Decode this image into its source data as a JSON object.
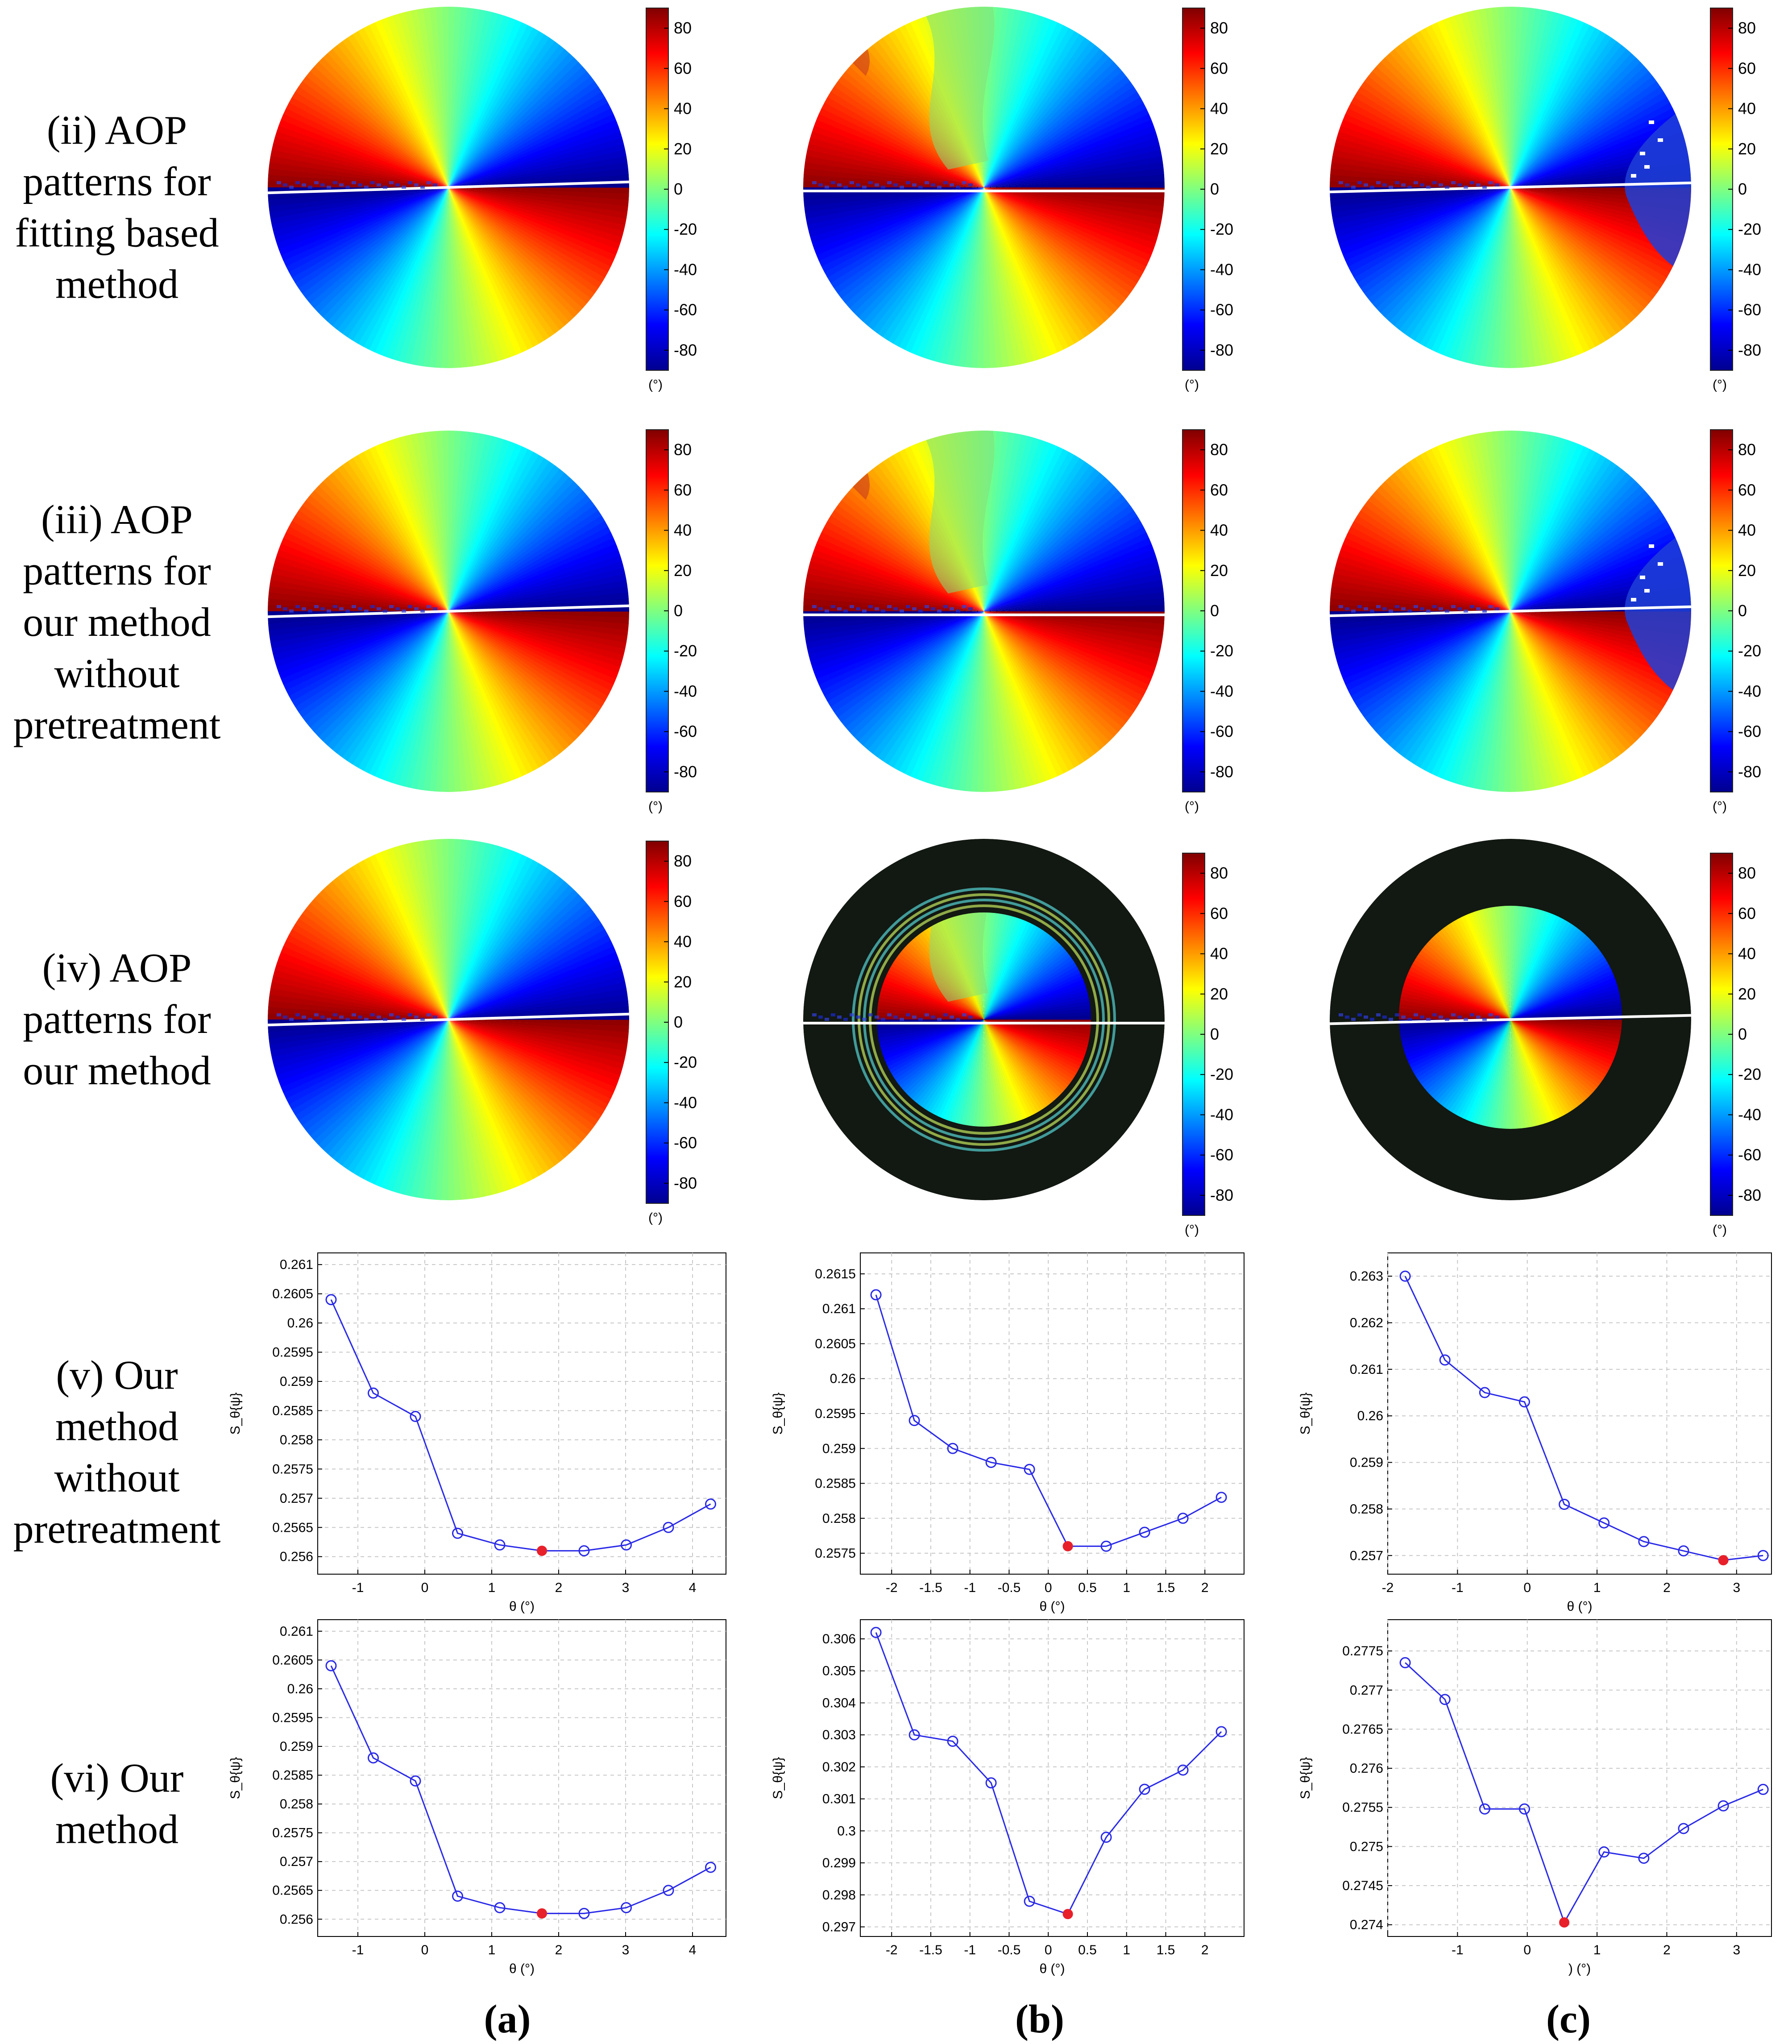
{
  "row_labels": [
    [
      "(ii) AOP",
      "patterns for",
      "fitting based",
      "method"
    ],
    [
      "(iii) AOP",
      "patterns for",
      "our method",
      "without",
      "pretreatment"
    ],
    [
      "(iv) AOP",
      "patterns for",
      "our method"
    ],
    [
      "(v) Our",
      "method",
      "without",
      "pretreatment"
    ],
    [
      "(vi) Our",
      "method"
    ]
  ],
  "column_labels": [
    "(a)",
    "(b)",
    "(c)"
  ],
  "colorbar": {
    "ticks": [
      "80",
      "60",
      "40",
      "20",
      "0",
      "-20",
      "-40",
      "-60",
      "-80"
    ],
    "unit": "(°)",
    "range": [
      -90,
      90
    ],
    "colormap": "jet"
  },
  "colors": {
    "line": "#2a2ae8",
    "marker": "#2a2ae8",
    "minimum_marker": "#e8202a",
    "grid": "#c8c8c8",
    "mask": "#121812"
  },
  "aop_maps": [
    [
      {
        "name": "aop-ii-a",
        "variant": "clean",
        "line_slope_deg": -0.6
      },
      {
        "name": "aop-ii-b",
        "variant": "noisy",
        "line_slope_deg": 0.0
      },
      {
        "name": "aop-ii-c",
        "variant": "dark-patch",
        "line_slope_deg": -0.3
      }
    ],
    [
      {
        "name": "aop-iii-a",
        "variant": "clean",
        "line_slope_deg": -0.6
      },
      {
        "name": "aop-iii-b",
        "variant": "noisy",
        "line_slope_deg": 0.0
      },
      {
        "name": "aop-iii-c",
        "variant": "dark-patch",
        "line_slope_deg": -0.3
      }
    ],
    [
      {
        "name": "aop-iv-a",
        "variant": "clean",
        "line_slope_deg": -0.6
      },
      {
        "name": "aop-iv-b",
        "variant": "ring-mask",
        "line_slope_deg": 0.0
      },
      {
        "name": "aop-iv-c",
        "variant": "disc-mask",
        "line_slope_deg": -0.2
      }
    ]
  ],
  "chart_data": [
    {
      "type": "line",
      "id": "v-a",
      "title": "",
      "xlabel": "θ (°)",
      "ylabel": "S_θ{ψ}",
      "x": [
        -1.4,
        -0.77,
        -0.14,
        0.49,
        1.12,
        1.75,
        2.38,
        3.01,
        3.64,
        4.27
      ],
      "y": [
        0.2604,
        0.2588,
        0.2584,
        0.2564,
        0.2562,
        0.2561,
        0.2561,
        0.2562,
        0.2565,
        0.2569
      ],
      "min_index": 5,
      "xlim": [
        -1.6,
        4.5
      ],
      "ylim": [
        0.2557,
        0.2612
      ],
      "xticks": [
        -1,
        0,
        1,
        2,
        3,
        4
      ],
      "xtick_labels": [
        "-1",
        "0",
        "1",
        "2",
        "3",
        "4"
      ],
      "yticks": [
        0.256,
        0.2565,
        0.257,
        0.2575,
        0.258,
        0.2585,
        0.259,
        0.2595,
        0.26,
        0.2605,
        0.261
      ],
      "ytick_labels": [
        "0.256",
        "0.2565",
        "0.257",
        "0.2575",
        "0.258",
        "0.2585",
        "0.259",
        "0.2595",
        "0.26",
        "0.2605",
        "0.261"
      ]
    },
    {
      "type": "line",
      "id": "v-b",
      "title": "",
      "xlabel": "θ (°)",
      "ylabel": "S_θ{ψ}",
      "x": [
        -2.2,
        -1.71,
        -1.22,
        -0.73,
        -0.24,
        0.25,
        0.74,
        1.23,
        1.72,
        2.21
      ],
      "y": [
        0.2612,
        0.2594,
        0.259,
        0.2588,
        0.2587,
        0.2576,
        0.2576,
        0.2578,
        0.258,
        0.2583
      ],
      "min_index": 5,
      "xlim": [
        -2.4,
        2.5
      ],
      "ylim": [
        0.2572,
        0.2618
      ],
      "xticks": [
        -2,
        -1.5,
        -1,
        -0.5,
        0,
        0.5,
        1,
        1.5,
        2
      ],
      "xtick_labels": [
        "-2",
        "-1.5",
        "-1",
        "-0.5",
        "0",
        "0.5",
        "1",
        "1.5",
        "2"
      ],
      "yticks": [
        0.2575,
        0.258,
        0.2585,
        0.259,
        0.2595,
        0.26,
        0.2605,
        0.261,
        0.2615
      ],
      "ytick_labels": [
        "0.2575",
        "0.258",
        "0.2585",
        "0.259",
        "0.2595",
        "0.26",
        "0.2605",
        "0.261",
        "0.2615"
      ]
    },
    {
      "type": "line",
      "id": "v-c",
      "title": "",
      "xlabel": "θ (°)",
      "ylabel": "S_θ{ψ}",
      "x": [
        -1.75,
        -1.18,
        -0.61,
        -0.04,
        0.53,
        1.1,
        1.67,
        2.24,
        2.81,
        3.38
      ],
      "y": [
        0.263,
        0.2612,
        0.2605,
        0.2603,
        0.2581,
        0.2577,
        0.2573,
        0.2571,
        0.2569,
        0.257
      ],
      "min_index": 8,
      "xlim": [
        -2.0,
        3.5
      ],
      "ylim": [
        0.2566,
        0.2635
      ],
      "xticks": [
        -2,
        -1,
        0,
        1,
        2,
        3
      ],
      "xtick_labels": [
        "-2",
        "-1",
        "0",
        "1",
        "2",
        "3"
      ],
      "yticks": [
        0.257,
        0.258,
        0.259,
        0.26,
        0.261,
        0.262,
        0.263
      ],
      "ytick_labels": [
        "0.257",
        "0.258",
        "0.259",
        "0.26",
        "0.261",
        "0.262",
        "0.263"
      ]
    },
    {
      "type": "line",
      "id": "vi-a",
      "title": "",
      "xlabel": "θ (°)",
      "ylabel": "S_θ{ψ}",
      "x": [
        -1.4,
        -0.77,
        -0.14,
        0.49,
        1.12,
        1.75,
        2.38,
        3.01,
        3.64,
        4.27
      ],
      "y": [
        0.2604,
        0.2588,
        0.2584,
        0.2564,
        0.2562,
        0.2561,
        0.2561,
        0.2562,
        0.2565,
        0.2569
      ],
      "min_index": 5,
      "xlim": [
        -1.6,
        4.5
      ],
      "ylim": [
        0.2557,
        0.2612
      ],
      "xticks": [
        -1,
        0,
        1,
        2,
        3,
        4
      ],
      "xtick_labels": [
        "-1",
        "0",
        "1",
        "2",
        "3",
        "4"
      ],
      "yticks": [
        0.256,
        0.2565,
        0.257,
        0.2575,
        0.258,
        0.2585,
        0.259,
        0.2595,
        0.26,
        0.2605,
        0.261
      ],
      "ytick_labels": [
        "0.256",
        "0.2565",
        "0.257",
        "0.2575",
        "0.258",
        "0.2585",
        "0.259",
        "0.2595",
        "0.26",
        "0.2605",
        "0.261"
      ]
    },
    {
      "type": "line",
      "id": "vi-b",
      "title": "",
      "xlabel": "θ (°)",
      "ylabel": "S_θ{ψ}",
      "x": [
        -2.2,
        -1.71,
        -1.22,
        -0.73,
        -0.24,
        0.25,
        0.74,
        1.23,
        1.72,
        2.21
      ],
      "y": [
        0.3062,
        0.303,
        0.3028,
        0.3015,
        0.2978,
        0.2974,
        0.2998,
        0.3013,
        0.3019,
        0.3031
      ],
      "min_index": 5,
      "xlim": [
        -2.4,
        2.5
      ],
      "ylim": [
        0.2967,
        0.3066
      ],
      "xticks": [
        -2,
        -1.5,
        -1,
        -0.5,
        0,
        0.5,
        1,
        1.5,
        2
      ],
      "xtick_labels": [
        "-2",
        "-1.5",
        "-1",
        "-0.5",
        "0",
        "0.5",
        "1",
        "1.5",
        "2"
      ],
      "yticks": [
        0.297,
        0.298,
        0.299,
        0.3,
        0.301,
        0.302,
        0.303,
        0.304,
        0.305,
        0.306
      ],
      "ytick_labels": [
        "0.297",
        "0.298",
        "0.299",
        "0.3",
        "0.301",
        "0.302",
        "0.303",
        "0.304",
        "0.305",
        "0.306"
      ]
    },
    {
      "type": "line",
      "id": "vi-c",
      "title": "",
      "xlabel": ") (°)",
      "ylabel": "S_θ{ψ}",
      "x": [
        -1.75,
        -1.18,
        -0.61,
        -0.04,
        0.53,
        1.1,
        1.67,
        2.24,
        2.81,
        3.38
      ],
      "y": [
        0.27735,
        0.27688,
        0.27548,
        0.27548,
        0.27403,
        0.27493,
        0.27485,
        0.27523,
        0.27552,
        0.27573
      ],
      "min_index": 4,
      "xlim": [
        -2.0,
        3.5
      ],
      "ylim": [
        0.27385,
        0.2779
      ],
      "xticks": [
        -2,
        -1,
        0,
        1,
        2,
        3
      ],
      "xtick_labels": [
        "",
        "-1",
        "0",
        "1",
        "2",
        "3"
      ],
      "yticks": [
        0.274,
        0.2745,
        0.275,
        0.2755,
        0.276,
        0.2765,
        0.277,
        0.2775
      ],
      "ytick_labels": [
        "0.274",
        "0.2745",
        "0.275",
        "0.2755",
        "0.276",
        "0.2765",
        "0.277",
        "0.2775"
      ]
    }
  ]
}
